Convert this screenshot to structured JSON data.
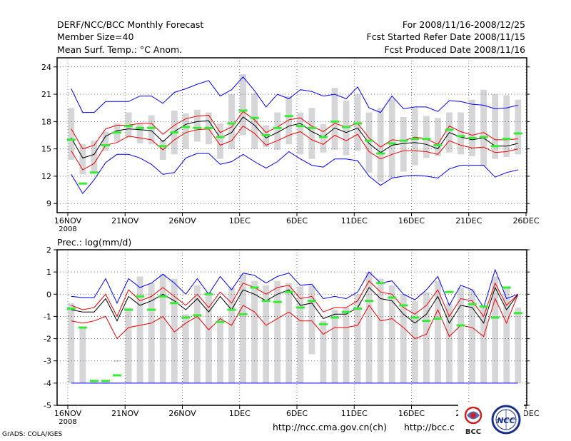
{
  "header": {
    "title": "DERF/NCC/BCC Monthly Forecast",
    "member_size": "Member Size=40",
    "variable": "Mean Surf. Temp.: °C Anom.",
    "period": "For 2008/11/16-2008/12/25",
    "started": "Fcst Started Refer Date 2008/11/15",
    "produced": "Fcst Produced Date 2008/11/16"
  },
  "footer": {
    "url1": "http://ncc.cma.gov.cn(ch)",
    "url2": "http://bcc.c",
    "grads": "GrADS: COLA/IGES",
    "logo1": "BCC",
    "logo2": "NCC"
  },
  "colors": {
    "max": "#0000ff",
    "min": "#0000ff",
    "upper": "#ee0000",
    "lower": "#ee0000",
    "mean": "#000000",
    "bar": "#d6d6d9",
    "obs": "#33ee33"
  },
  "chart_data": [
    {
      "type": "line",
      "title": "Mean Surf. Temp.: °C Anom.",
      "x_tick_labels": [
        "16NOV",
        "21NOV",
        "26NOV",
        "1DEC",
        "6DEC",
        "11DEC",
        "16DEC",
        "21DEC",
        "26DEC"
      ],
      "year_label": "2008",
      "ylim": [
        8,
        25
      ],
      "yticks": [
        9,
        12,
        15,
        18,
        21,
        24
      ],
      "grid": true,
      "series": [
        {
          "name": "max",
          "values": [
            21.6,
            19.0,
            19.0,
            20.2,
            20.2,
            20.2,
            20.8,
            20.8,
            20.0,
            21.2,
            21.6,
            22.1,
            22.5,
            20.8,
            21.5,
            22.9,
            21.4,
            19.6,
            21.0,
            20.5,
            21.5,
            21.3,
            20.8,
            21.0,
            20.5,
            21.8,
            19.5,
            19.0,
            20.8,
            19.4,
            19.6,
            19.6,
            19.1,
            20.3,
            20.2,
            19.9,
            19.8,
            19.4,
            19.5,
            19.8
          ]
        },
        {
          "name": "upper",
          "values": [
            17.2,
            15.0,
            15.4,
            17.2,
            17.6,
            17.6,
            17.8,
            17.8,
            16.6,
            17.6,
            18.3,
            18.6,
            18.7,
            16.8,
            17.4,
            19.1,
            18.2,
            16.8,
            17.4,
            18.2,
            18.4,
            17.5,
            16.9,
            17.8,
            17.4,
            17.8,
            16.2,
            15.2,
            16.0,
            15.9,
            16.3,
            16.1,
            15.5,
            17.5,
            16.9,
            16.5,
            16.8,
            16.0,
            16.0,
            16.1
          ]
        },
        {
          "name": "mean",
          "values": [
            16.2,
            14.0,
            14.4,
            16.4,
            17.0,
            17.2,
            17.1,
            17.0,
            15.8,
            16.9,
            17.7,
            18.0,
            18.1,
            16.2,
            16.8,
            18.5,
            17.6,
            16.2,
            16.8,
            17.5,
            17.8,
            16.9,
            16.3,
            17.3,
            16.8,
            17.3,
            15.6,
            14.6,
            15.4,
            15.6,
            15.7,
            15.5,
            15.0,
            16.8,
            16.3,
            16.0,
            16.2,
            15.3,
            15.3,
            15.6
          ]
        },
        {
          "name": "lower",
          "values": [
            14.8,
            12.7,
            13.4,
            15.4,
            15.7,
            16.4,
            16.2,
            16.0,
            14.9,
            16.0,
            16.8,
            17.1,
            17.2,
            15.4,
            15.9,
            17.5,
            16.7,
            15.4,
            15.9,
            16.5,
            16.9,
            16.0,
            15.5,
            16.5,
            15.9,
            16.6,
            14.7,
            13.9,
            14.4,
            14.8,
            14.8,
            14.7,
            14.4,
            15.9,
            15.4,
            15.1,
            15.2,
            14.6,
            14.7,
            15.0
          ]
        },
        {
          "name": "min",
          "values": [
            12.2,
            10.1,
            11.6,
            13.5,
            14.4,
            14.4,
            14.0,
            13.3,
            12.2,
            12.4,
            14.0,
            14.5,
            14.5,
            13.3,
            13.6,
            14.4,
            13.6,
            12.9,
            13.6,
            14.7,
            13.9,
            13.2,
            13.0,
            13.9,
            13.9,
            13.7,
            12.0,
            11.0,
            11.8,
            12.0,
            12.1,
            12.0,
            11.8,
            12.8,
            13.2,
            13.2,
            13.2,
            11.9,
            12.4,
            12.7
          ]
        },
        {
          "name": "obs",
          "values": [
            16.0,
            11.2,
            12.4,
            15.4,
            16.8,
            17.5,
            17.3,
            17.3,
            15.3,
            16.8,
            17.4,
            17.3,
            17.3,
            16.3,
            17.8,
            19.2,
            18.4,
            16.5,
            17.3,
            18.6,
            17.5,
            17.3,
            16.3,
            18.0,
            17.4,
            17.8,
            15.9,
            14.5,
            15.6,
            15.9,
            16.1,
            16.1,
            15.4,
            17.1,
            16.4,
            16.2,
            16.3,
            15.3,
            16.1,
            16.7
          ]
        }
      ],
      "bars": [
        [
          13.8,
          19.5
        ],
        [
          12.2,
          15.5
        ],
        [
          12.5,
          15.9
        ],
        [
          14.8,
          16.9
        ],
        [
          15.8,
          17.8
        ],
        [
          16.2,
          19.0
        ],
        [
          15.6,
          17.8
        ],
        [
          15.5,
          18.7
        ],
        [
          13.8,
          16.0
        ],
        [
          14.4,
          19.2
        ],
        [
          15.0,
          18.9
        ],
        [
          15.8,
          19.3
        ],
        [
          15.5,
          19.0
        ],
        [
          13.9,
          17.8
        ],
        [
          15.0,
          21.0
        ],
        [
          16.5,
          23.2
        ],
        [
          15.0,
          21.1
        ],
        [
          15.2,
          17.6
        ],
        [
          14.9,
          19.0
        ],
        [
          15.5,
          20.8
        ],
        [
          14.4,
          19.0
        ],
        [
          13.9,
          19.5
        ],
        [
          14.6,
          17.7
        ],
        [
          14.9,
          21.7
        ],
        [
          14.3,
          20.3
        ],
        [
          14.8,
          21.0
        ],
        [
          12.4,
          19.0
        ],
        [
          11.4,
          19.5
        ],
        [
          11.8,
          20.5
        ],
        [
          12.5,
          18.5
        ],
        [
          13.2,
          19.5
        ],
        [
          14.0,
          18.6
        ],
        [
          14.2,
          18.4
        ],
        [
          14.6,
          19.0
        ],
        [
          14.4,
          19.0
        ],
        [
          14.2,
          20.4
        ],
        [
          13.1,
          21.5
        ],
        [
          13.9,
          21.0
        ],
        [
          14.1,
          20.9
        ],
        [
          14.4,
          20.4
        ]
      ]
    },
    {
      "type": "line",
      "title": "Prec.: log(mm/d)",
      "x_tick_labels": [
        "16NOV",
        "21NOV",
        "26NOV",
        "1DEC",
        "6DEC",
        "11DEC",
        "16DEC",
        "21DEC",
        "26DEC"
      ],
      "year_label": "2008",
      "ylim": [
        -5,
        2
      ],
      "yticks": [
        -5,
        -4,
        -3,
        -2,
        -1,
        0,
        1,
        2
      ],
      "grid": true,
      "series": [
        {
          "name": "max",
          "values": [
            -0.1,
            -0.15,
            -0.15,
            0.7,
            -0.4,
            0.7,
            0.3,
            0.5,
            0.9,
            0.5,
            0.0,
            0.7,
            0.0,
            0.8,
            0.2,
            0.95,
            0.85,
            0.5,
            0.8,
            0.95,
            0.4,
            0.45,
            -0.2,
            -0.1,
            -0.2,
            0.1,
            1.0,
            0.5,
            0.6,
            0.0,
            -0.25,
            0.2,
            0.8,
            -0.5,
            0.4,
            0.2,
            -0.6,
            1.1,
            -0.2,
            0.0
          ]
        },
        {
          "name": "upper",
          "values": [
            -0.5,
            -0.7,
            -0.6,
            0.0,
            -1.0,
            0.2,
            -0.3,
            -0.1,
            0.3,
            -0.1,
            -0.5,
            0.0,
            -0.6,
            0.1,
            -0.4,
            0.5,
            0.3,
            0.0,
            0.3,
            0.4,
            -0.2,
            -0.1,
            -0.8,
            -0.6,
            -0.6,
            -0.3,
            0.6,
            0.1,
            0.0,
            -0.6,
            -0.9,
            -0.5,
            0.2,
            -1.0,
            -0.2,
            -0.3,
            -1.0,
            0.5,
            -0.5,
            0.0
          ]
        },
        {
          "name": "mean",
          "values": [
            -0.7,
            -0.8,
            -0.8,
            -0.2,
            -1.2,
            -0.1,
            -0.5,
            -0.3,
            0.0,
            -0.3,
            -0.7,
            -0.2,
            -0.8,
            -0.1,
            -0.7,
            0.2,
            0.0,
            -0.3,
            0.0,
            0.2,
            -0.5,
            -0.4,
            -1.1,
            -0.9,
            -0.9,
            -0.6,
            0.3,
            -0.2,
            -0.3,
            -0.9,
            -1.3,
            -0.9,
            -0.1,
            -1.3,
            -0.5,
            -0.6,
            -1.3,
            0.3,
            -0.7,
            0.0
          ]
        },
        {
          "name": "lower",
          "values": [
            -1.2,
            -1.3,
            -1.2,
            -1.0,
            -2.0,
            -1.5,
            -1.4,
            -1.3,
            -1.0,
            -1.7,
            -1.3,
            -1.0,
            -1.6,
            -1.1,
            -1.4,
            -0.5,
            -0.8,
            -1.4,
            -1.1,
            -0.8,
            -1.2,
            -1.2,
            -1.8,
            -1.5,
            -1.5,
            -1.4,
            -0.5,
            -1.2,
            -1.1,
            -1.5,
            -2.0,
            -1.8,
            -0.7,
            -1.9,
            -1.4,
            -1.5,
            -1.9,
            -0.2,
            -1.3,
            0.0
          ]
        },
        {
          "name": "min",
          "values": [
            -4.0,
            -4.0,
            -4.0,
            -4.0,
            -4.0,
            -4.0,
            -4.0,
            -4.0,
            -4.0,
            -4.0,
            -4.0,
            -4.0,
            -4.0,
            -4.0,
            -4.0,
            -4.0,
            -4.0,
            -4.0,
            -4.0,
            -4.0,
            -4.0,
            -4.0,
            -4.0,
            -4.0,
            -4.0,
            -4.0,
            -4.0,
            -4.0,
            -4.0,
            -4.0,
            -4.0,
            -4.0,
            -4.0,
            -4.0,
            -4.0,
            -4.0,
            -4.0,
            -4.0,
            -4.0,
            -4.0
          ]
        },
        {
          "name": "obs",
          "values": [
            -0.65,
            -1.5,
            -3.9,
            -3.9,
            -3.65,
            -0.7,
            -0.1,
            -0.7,
            -0.1,
            -0.4,
            -1.05,
            -0.95,
            0.0,
            -1.25,
            -0.7,
            -0.9,
            0.3,
            -0.3,
            -0.35,
            0.1,
            -0.6,
            -0.3,
            -1.35,
            -1.05,
            -0.8,
            -0.65,
            -0.3,
            0.5,
            -0.15,
            -0.5,
            -1.05,
            -1.2,
            -1.1,
            0.1,
            -1.4,
            -0.45,
            -0.55,
            -1.05,
            0.3,
            -0.85
          ]
        }
      ],
      "bars": [
        [
          -4.0,
          -0.4
        ],
        [
          -4.0,
          -1.5
        ],
        [
          -4.0,
          -4.0
        ],
        [
          -4.0,
          -4.0
        ],
        [
          -3.0,
          -3.0
        ],
        [
          -4.0,
          -0.6
        ],
        [
          -4.0,
          0.8
        ],
        [
          -4.0,
          0.5
        ],
        [
          -4.0,
          0.9
        ],
        [
          -4.0,
          0.7
        ],
        [
          -4.0,
          -0.9
        ],
        [
          -4.0,
          0.4
        ],
        [
          -4.0,
          0.1
        ],
        [
          -4.0,
          -1.0
        ],
        [
          -4.0,
          0.3
        ],
        [
          -4.0,
          0.9
        ],
        [
          -4.0,
          0.6
        ],
        [
          -4.0,
          0.4
        ],
        [
          -4.0,
          0.6
        ],
        [
          -4.0,
          0.5
        ],
        [
          -4.0,
          0.35
        ],
        [
          -2.7,
          0.4
        ],
        [
          -4.0,
          -1.2
        ],
        [
          -4.0,
          -0.7
        ],
        [
          -4.0,
          -0.6
        ],
        [
          -4.0,
          0.0
        ],
        [
          -4.0,
          1.0
        ],
        [
          -4.0,
          0.7
        ],
        [
          -4.0,
          0.4
        ],
        [
          -4.0,
          0.0
        ],
        [
          -4.0,
          -0.3
        ],
        [
          -4.0,
          0.1
        ],
        [
          -4.0,
          0.6
        ],
        [
          -4.0,
          -0.4
        ],
        [
          -4.0,
          0.3
        ],
        [
          -4.0,
          0.2
        ],
        [
          -4.0,
          -0.5
        ],
        [
          -4.0,
          0.8
        ],
        [
          -4.0,
          0.3
        ],
        [
          -4.0,
          -0.6
        ]
      ]
    }
  ]
}
